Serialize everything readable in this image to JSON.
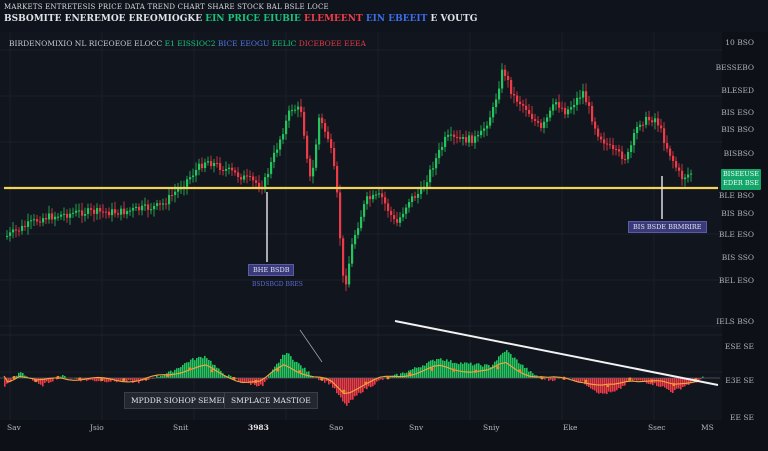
{
  "header": {
    "line1": "MARKETS ENTRETESIS PRICE DATA TREND CHART  SHARE STOCK  BAL  BSLE LOCE",
    "line2_prefix": "BSBOMITE ENEREMOE EREOMIOGKE",
    "line2_g": "EIN PRICE EIUBIE",
    "line2_r": "ELEMEENT",
    "line2_b": "EIN EBEEIT",
    "line2_suffix": "E VOUTG"
  },
  "legend": {
    "prefix": "BIRDENOMIXIO NL RICEOEOE ELOCC",
    "g": "E1 EISSIOC2",
    "b": "BICE EEOGU",
    "n": "EELIC",
    "r": "DICEBOEE EEEA"
  },
  "price_axis": [
    "10 BSO",
    "BESSEBO",
    "BLESED",
    "BIS ESO",
    "BIS BSO",
    "BISBSO",
    "BLE BSO",
    "BIS BSO",
    "BLE ESO",
    "BIS SSO",
    "BEL ESO",
    "IELS BSO"
  ],
  "price_tag": {
    "line1": "BISEEUSE",
    "line2": "EDER BSE"
  },
  "indicator_axis": [
    "ESE SE",
    "E3E SE",
    "EE SE"
  ],
  "annotations": {
    "a1": "BHE BSDB",
    "a1_sub": "BSDSBGD BRES",
    "a2": "BIS BSDE BRMRIRE"
  },
  "indicator_labels": {
    "left": "MPDDR SIOHOP SEMEDES",
    "right": "SMPLACE MASTIOE"
  },
  "time_axis": [
    "Sav",
    "Jsio",
    "Snit",
    "3983",
    "Sao",
    "Snv",
    "Sniy",
    "Eke",
    "Ssec",
    "MS"
  ],
  "colors": {
    "up": "#22c55e",
    "down": "#ef3b47",
    "level": "#f3d35c",
    "trendline": "#f2f2f2",
    "tag": "#15a46a"
  },
  "icons": {
    "annotation_marker": "vertical-line-marker"
  }
}
